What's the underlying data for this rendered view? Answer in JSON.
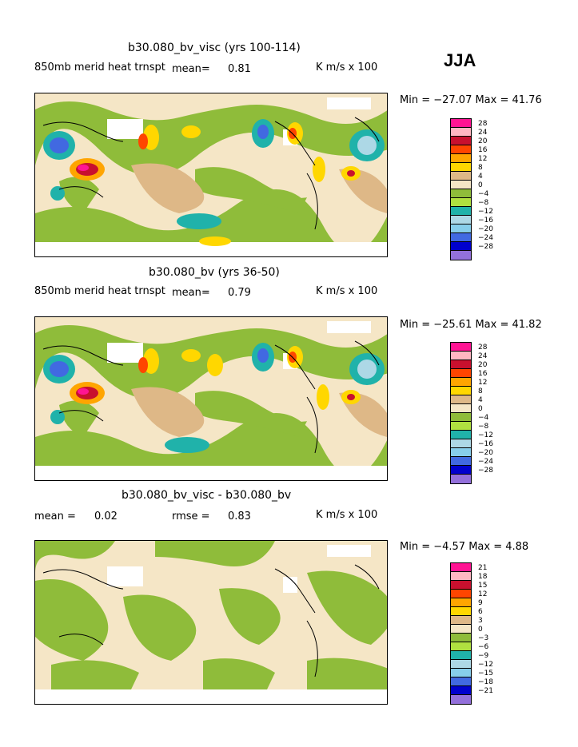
{
  "season": "JJA",
  "panels": [
    {
      "title": "b30.080_bv_visc (yrs 100-114)",
      "left_label": "850mb merid heat trnspt",
      "mean_label": "mean=",
      "mean_value": "0.81",
      "units": "K m/s x 100",
      "range_text": "Min = −27.07 Max =   41.76",
      "colorbar": [
        "28",
        "24",
        "20",
        "16",
        "12",
        "8",
        "4",
        "0",
        "−4",
        "−8",
        "−12",
        "−16",
        "−20",
        "−24",
        "−28"
      ]
    },
    {
      "title": "b30.080_bv (yrs 36-50)",
      "left_label": "850mb merid heat trnspt",
      "mean_label": "mean=",
      "mean_value": "0.79",
      "units": "K m/s x 100",
      "range_text": "Min = −25.61 Max =   41.82",
      "colorbar": [
        "28",
        "24",
        "20",
        "16",
        "12",
        "8",
        "4",
        "0",
        "−4",
        "−8",
        "−12",
        "−16",
        "−20",
        "−24",
        "−28"
      ]
    },
    {
      "title": "b30.080_bv_visc - b30.080_bv",
      "left_label": "mean =",
      "mean_value": "0.02",
      "rmse_label": "rmse =",
      "rmse_value": "0.83",
      "units": "K m/s x 100",
      "range_text": "Min =  −4.57 Max =    4.88",
      "colorbar": [
        "21",
        "18",
        "15",
        "12",
        "9",
        "6",
        "3",
        "0",
        "−3",
        "−6",
        "−9",
        "−12",
        "−15",
        "−18",
        "−21"
      ]
    }
  ],
  "colors": [
    "#ff1493",
    "#ffb6c1",
    "#c8102e",
    "#ff4500",
    "#ffa500",
    "#ffd700",
    "#deb887",
    "#f5e6c6",
    "#8fbc3a",
    "#b0e040",
    "#20b2aa",
    "#add8e6",
    "#87ceeb",
    "#4169e1",
    "#0000cd",
    "#9370db"
  ]
}
